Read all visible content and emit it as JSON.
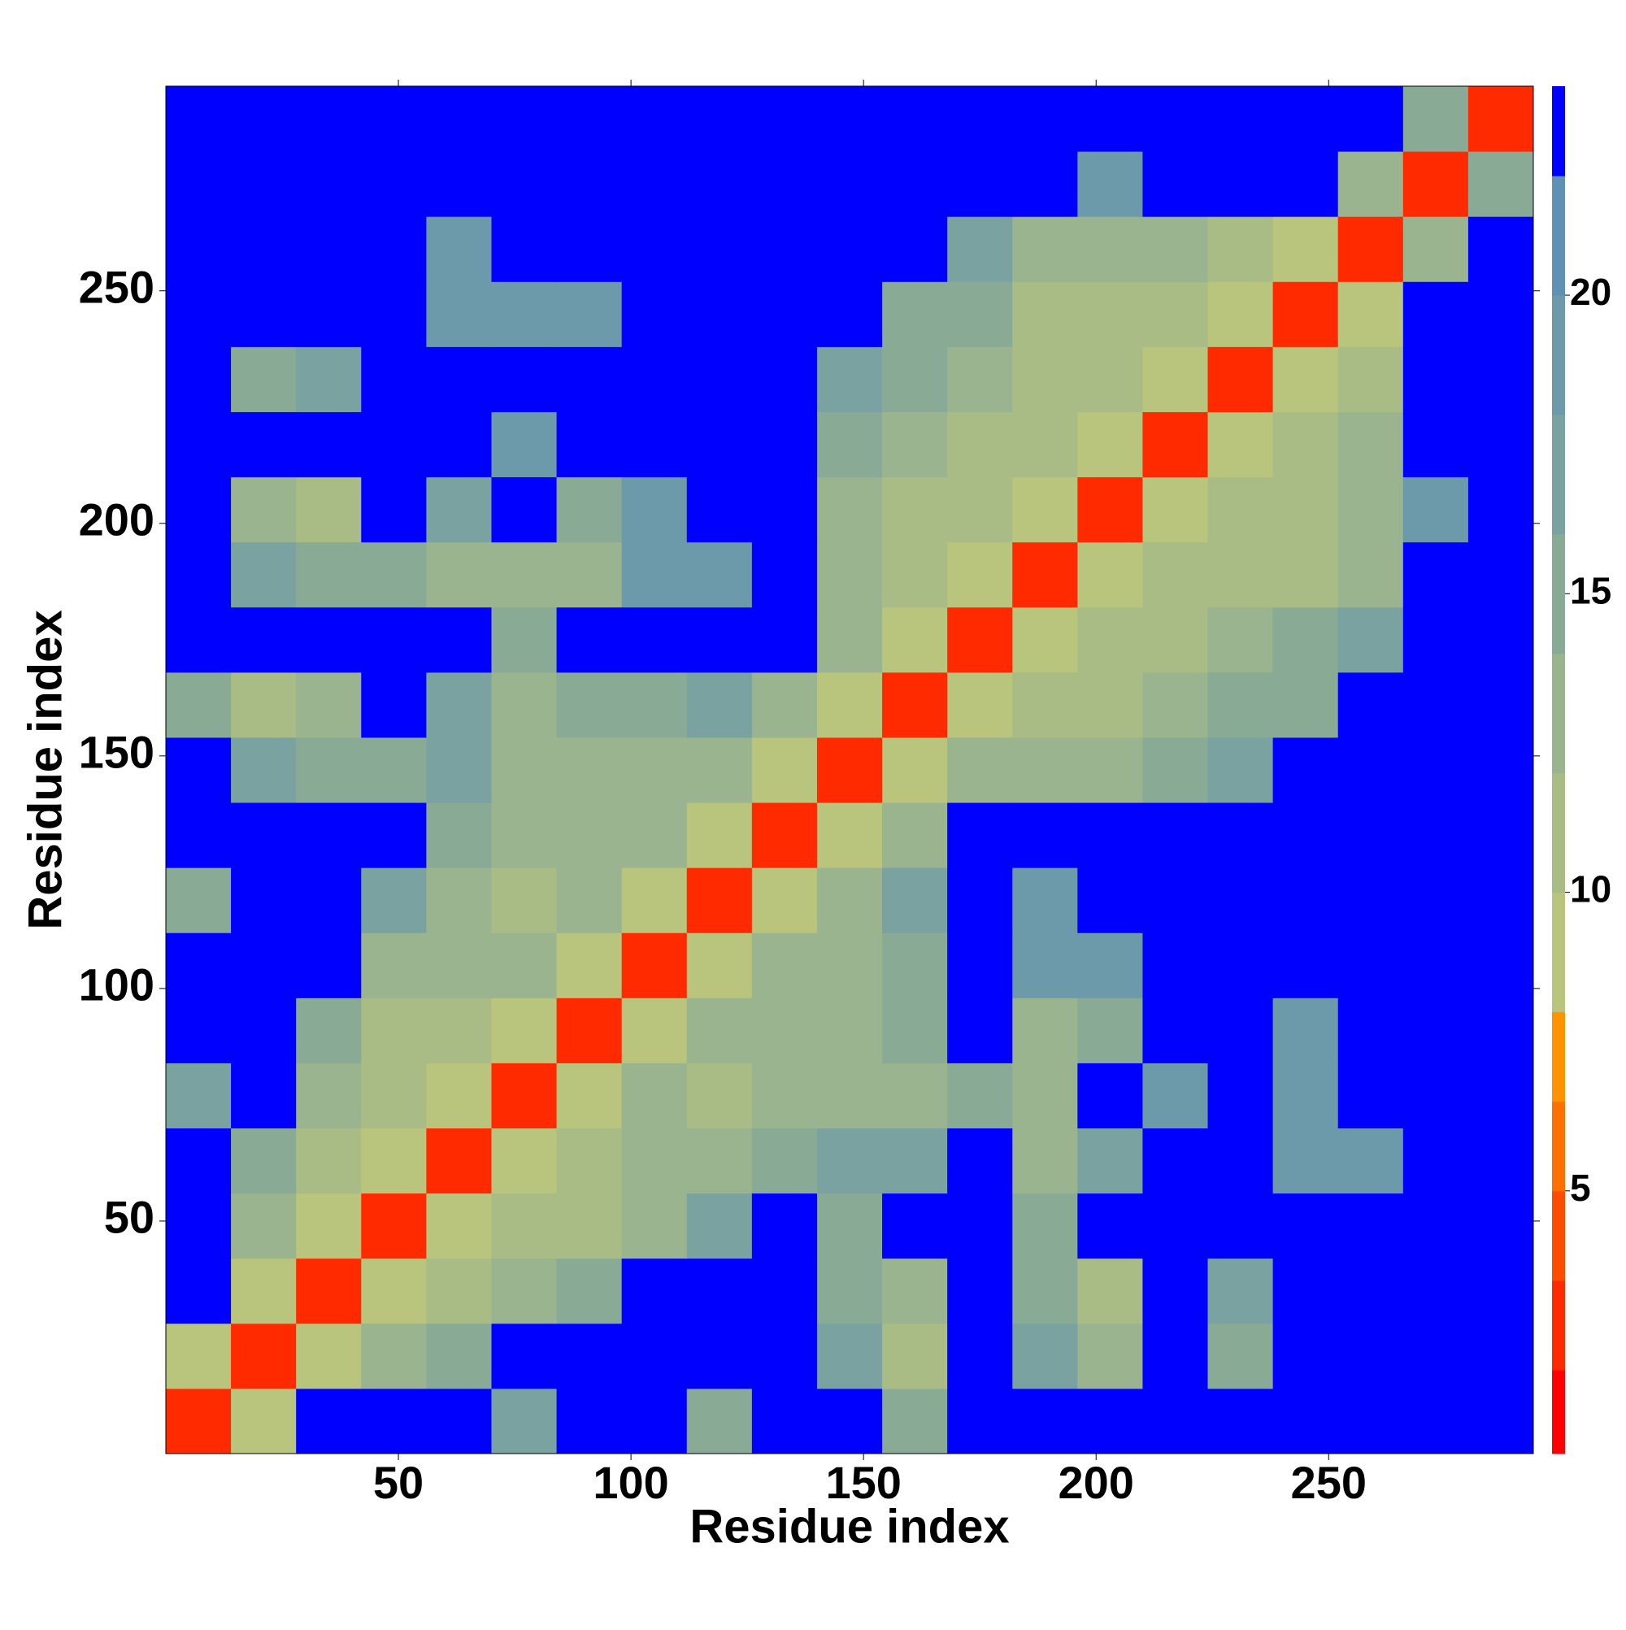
{
  "chart_data": {
    "type": "heatmap",
    "x_label": "Residue index",
    "y_label": "Residue index",
    "x_edges": [
      0,
      14,
      28,
      42,
      56,
      70,
      84,
      98,
      112,
      126,
      140,
      154,
      168,
      182,
      196,
      210,
      224,
      238,
      252,
      266,
      280,
      294
    ],
    "y_edges": [
      0,
      14,
      28,
      42,
      56,
      70,
      84,
      98,
      112,
      126,
      140,
      154,
      168,
      182,
      196,
      210,
      224,
      238,
      252,
      266,
      280,
      294
    ],
    "xlim": [
      0,
      294
    ],
    "ylim": [
      0,
      294
    ],
    "xticks": [
      50,
      100,
      150,
      200,
      250
    ],
    "yticks": [
      50,
      100,
      150,
      200,
      250
    ],
    "values": [
      [
        3,
        10,
        23,
        23,
        23,
        17,
        23,
        23,
        15,
        23,
        23,
        16,
        23,
        23,
        23,
        23,
        23,
        23,
        23,
        23,
        23
      ],
      [
        10,
        3,
        10,
        14,
        16,
        23,
        23,
        23,
        23,
        23,
        17,
        12,
        23,
        18,
        14,
        23,
        16,
        23,
        23,
        23,
        23
      ],
      [
        23,
        10,
        3,
        10,
        12,
        13,
        16,
        23,
        23,
        23,
        15,
        14,
        23,
        15,
        12,
        23,
        18,
        23,
        23,
        23,
        23
      ],
      [
        23,
        14,
        10,
        3,
        10,
        12,
        12,
        13,
        17,
        23,
        16,
        23,
        23,
        15,
        23,
        23,
        23,
        23,
        23,
        23,
        23
      ],
      [
        23,
        16,
        12,
        10,
        3,
        10,
        12,
        14,
        13,
        16,
        17,
        17,
        23,
        13,
        17,
        23,
        23,
        19,
        19,
        23,
        23
      ],
      [
        17,
        23,
        13,
        12,
        10,
        3,
        10,
        14,
        12,
        13,
        14,
        13,
        16,
        14,
        23,
        19,
        23,
        19,
        23,
        23,
        23
      ],
      [
        23,
        23,
        16,
        12,
        12,
        10,
        3,
        10,
        13,
        14,
        14,
        16,
        23,
        14,
        15,
        23,
        23,
        20,
        23,
        23,
        23
      ],
      [
        23,
        23,
        23,
        13,
        14,
        14,
        10,
        3,
        10,
        13,
        13,
        15,
        23,
        19,
        19,
        23,
        23,
        23,
        23,
        23,
        23
      ],
      [
        15,
        23,
        23,
        17,
        13,
        12,
        13,
        10,
        3,
        10,
        14,
        18,
        23,
        19,
        23,
        23,
        23,
        23,
        23,
        23,
        23
      ],
      [
        23,
        23,
        23,
        23,
        16,
        13,
        14,
        13,
        10,
        3,
        10,
        13,
        23,
        23,
        23,
        23,
        23,
        23,
        23,
        23,
        23
      ],
      [
        23,
        17,
        15,
        16,
        17,
        14,
        14,
        13,
        14,
        10,
        3,
        10,
        14,
        13,
        13,
        16,
        17,
        23,
        23,
        23,
        23
      ],
      [
        16,
        12,
        14,
        23,
        17,
        13,
        16,
        15,
        18,
        13,
        10,
        3,
        10,
        11,
        12,
        14,
        15,
        16,
        23,
        23,
        23
      ],
      [
        23,
        23,
        23,
        23,
        23,
        16,
        23,
        23,
        23,
        23,
        14,
        10,
        3,
        10,
        11,
        12,
        14,
        15,
        17,
        23,
        23
      ],
      [
        23,
        18,
        15,
        15,
        13,
        14,
        14,
        19,
        19,
        23,
        13,
        11,
        10,
        3,
        10,
        11,
        12,
        12,
        13,
        23,
        23
      ],
      [
        23,
        14,
        12,
        23,
        17,
        23,
        15,
        19,
        23,
        23,
        13,
        12,
        11,
        10,
        3,
        10,
        11,
        12,
        14,
        19,
        23
      ],
      [
        23,
        23,
        23,
        23,
        23,
        19,
        23,
        23,
        23,
        23,
        16,
        14,
        12,
        11,
        10,
        3,
        10,
        11,
        13,
        23,
        23
      ],
      [
        23,
        16,
        18,
        23,
        23,
        23,
        23,
        23,
        23,
        23,
        17,
        15,
        14,
        12,
        11,
        10,
        3,
        10,
        12,
        23,
        23
      ],
      [
        23,
        23,
        23,
        23,
        19,
        19,
        20,
        23,
        23,
        23,
        23,
        16,
        15,
        12,
        12,
        11,
        10,
        3,
        10,
        23,
        23
      ],
      [
        23,
        23,
        23,
        23,
        19,
        23,
        23,
        23,
        23,
        23,
        23,
        23,
        17,
        13,
        14,
        13,
        12,
        10,
        3,
        13,
        23
      ],
      [
        23,
        23,
        23,
        23,
        23,
        23,
        23,
        23,
        23,
        23,
        23,
        23,
        23,
        23,
        19,
        23,
        23,
        23,
        13,
        3,
        16
      ],
      [
        23,
        23,
        23,
        23,
        23,
        23,
        23,
        23,
        23,
        23,
        23,
        23,
        23,
        23,
        23,
        23,
        23,
        23,
        23,
        16,
        3
      ]
    ],
    "colorbar": {
      "bounds": [
        0.6,
        2,
        3.5,
        5,
        6.5,
        8,
        10,
        12,
        14,
        16,
        18,
        20,
        22,
        23.5
      ],
      "colors": [
        "#ff0000",
        "#ff2a00",
        "#ff4d00",
        "#ff7000",
        "#ff9400",
        "#b9c47c",
        "#a9bc86",
        "#99b48e",
        "#89ab96",
        "#7aa2a0",
        "#6c9aaa",
        "#5f91b4",
        "#0000ff"
      ],
      "ticks": [
        5,
        10,
        15,
        20
      ]
    }
  }
}
